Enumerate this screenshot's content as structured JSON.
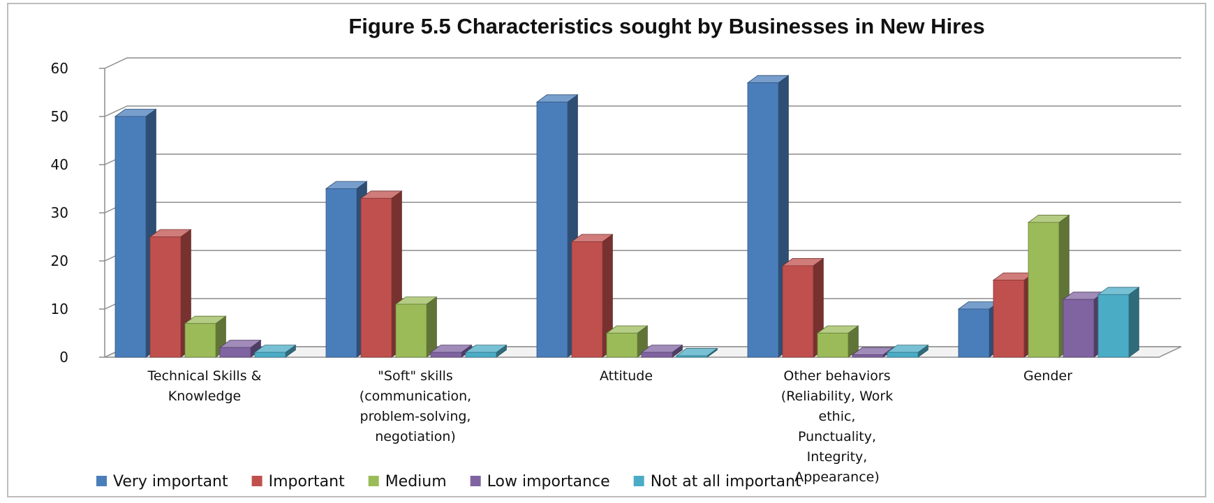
{
  "chart_data": {
    "type": "bar",
    "title": "Figure 5.5 Characteristics sought by Businesses in New Hires",
    "xlabel": "",
    "ylabel": "",
    "ylim": [
      0,
      60
    ],
    "yticks": [
      0,
      10,
      20,
      30,
      40,
      50,
      60
    ],
    "grid": true,
    "legend_position": "bottom",
    "categories": [
      [
        "Technical Skills &",
        "Knowledge"
      ],
      [
        "\"Soft\" skills",
        "(communication,",
        "problem-solving,",
        "negotiation)"
      ],
      [
        "Attitude"
      ],
      [
        "Other behaviors",
        "(Reliability, Work",
        "ethic,",
        "Punctuality,",
        "Integrity,",
        "Appearance)"
      ],
      [
        "Gender"
      ]
    ],
    "series": [
      {
        "name": "Very important",
        "color": "#4A7EBB",
        "values": [
          50,
          35,
          53,
          57,
          10
        ]
      },
      {
        "name": "Important",
        "color": "#C0504D",
        "values": [
          25,
          33,
          24,
          19,
          16
        ]
      },
      {
        "name": "Medium",
        "color": "#9BBB59",
        "values": [
          7,
          11,
          5,
          5,
          28
        ]
      },
      {
        "name": "Low importance",
        "color": "#8064A2",
        "values": [
          2,
          1,
          1,
          0.5,
          12
        ]
      },
      {
        "name": "Not at all important",
        "color": "#4BACC6",
        "values": [
          1,
          1,
          0.3,
          1,
          13
        ]
      }
    ]
  }
}
